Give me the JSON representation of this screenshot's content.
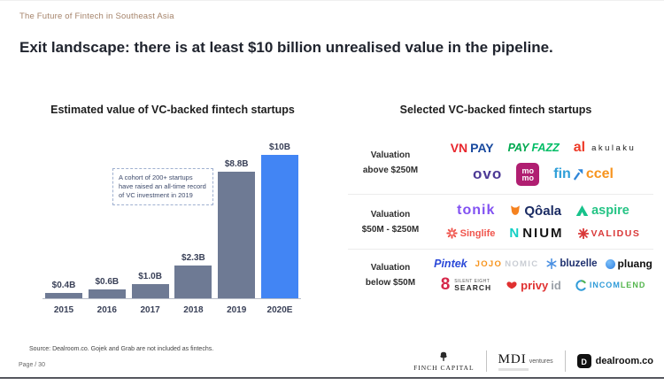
{
  "slide": {
    "eyebrow": "The Future of Fintech in Southeast Asia",
    "title": "Exit landscape: there is at least $10 billion unrealised value in the pipeline.",
    "source": "Source: Dealroom.co. Gojek and Grab are not included as fintechs.",
    "page": "Page / 30"
  },
  "chart_data": {
    "type": "bar",
    "title": "Estimated value of VC-backed fintech startups",
    "categories": [
      "2015",
      "2016",
      "2017",
      "2018",
      "2019",
      "2020E"
    ],
    "values": [
      0.4,
      0.6,
      1.0,
      2.3,
      8.8,
      10
    ],
    "labels": [
      "$0.4B",
      "$0.6B",
      "$1.0B",
      "$2.3B",
      "$8.8B",
      "$10B"
    ],
    "ylim": [
      0,
      10
    ],
    "unit": "USD billions",
    "grid": false,
    "bar_color": "#6e7a94",
    "highlight_index": 5,
    "highlight_color": "#4285f4",
    "annotation": "A cohort of 200+ startups have raised an all-time record of VC investment in 2019"
  },
  "logo_panel": {
    "title": "Selected VC-backed fintech startups",
    "groups": [
      {
        "label_line1": "Valuation",
        "label_line2": "above $250M"
      },
      {
        "label_line1": "Valuation",
        "label_line2": "$50M - $250M"
      },
      {
        "label_line1": "Valuation",
        "label_line2": "below $50M"
      }
    ],
    "logos": {
      "vnpay": {
        "vn": "VN",
        "pay": "PAY"
      },
      "payfazz": {
        "p1": "PAY",
        "p2": "FAZZ"
      },
      "akulaku": {
        "mark": "al",
        "name": "akulaku"
      },
      "ovo": {
        "name": "ovo"
      },
      "momo": {
        "line1": "mo",
        "line2": "mo"
      },
      "finaccel": {
        "fin": "fin",
        "ccel": "ccel"
      },
      "tonik": {
        "name": "tonik"
      },
      "qoala": {
        "name": "Qôala"
      },
      "aspire": {
        "name": "aspire"
      },
      "singlife": {
        "name": "Singlife"
      },
      "nium": {
        "mark": "N",
        "name": "NIUM"
      },
      "validus": {
        "name": "VALIDUS"
      },
      "pintek": {
        "name": "Pintek"
      },
      "jojonomic": {
        "p1": "JOJO",
        "p2": "NOMIC"
      },
      "bluzelle": {
        "name": "bluzelle"
      },
      "pluang": {
        "name": "pluang"
      },
      "silenteight": {
        "mark": "8",
        "line1": "SILENT EIGHT",
        "line2": "SEARCH"
      },
      "privyid": {
        "p1": "privy",
        "p2": "id"
      },
      "incomlend": {
        "p1": "INCOM",
        "p2": "LEND"
      }
    }
  },
  "footer": {
    "finch": {
      "p1": "FINCH",
      "p2": "CAPITAL"
    },
    "mdi": {
      "name": "MDI",
      "sub": "ventures"
    },
    "dealroom": {
      "mark": "D",
      "name": "dealroom.co"
    }
  }
}
